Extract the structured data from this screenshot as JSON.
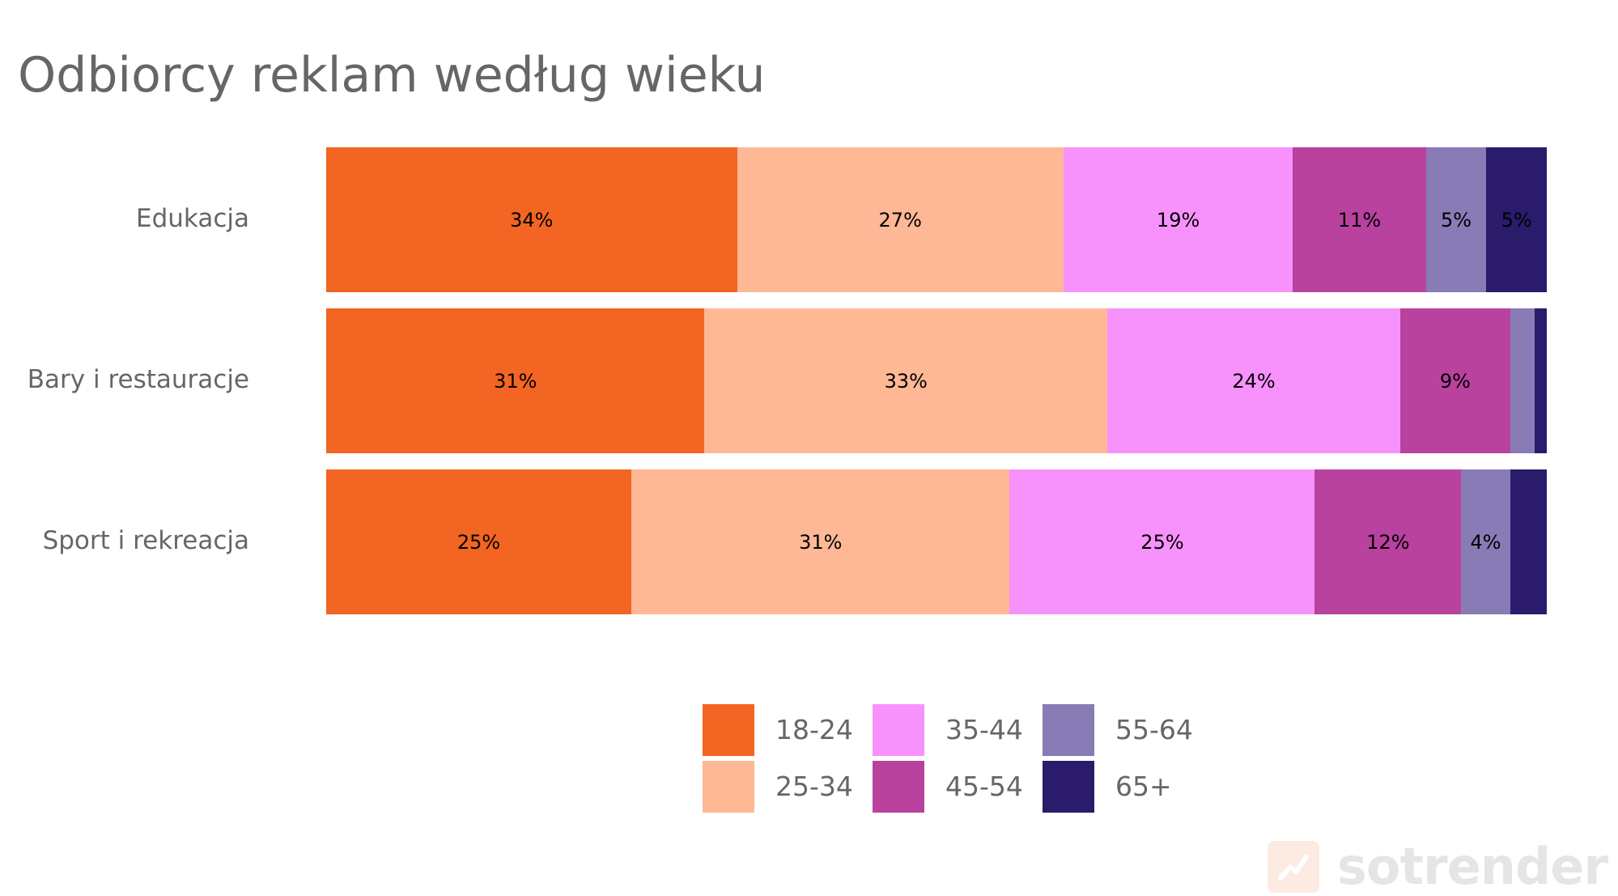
{
  "chart_data": {
    "type": "bar",
    "orientation": "horizontal",
    "stacked": true,
    "title": "Odbiorcy reklam według wieku",
    "categories": [
      "Edukacja",
      "Bary i restauracje",
      "Sport i rekreacja"
    ],
    "series": [
      {
        "name": "18-24",
        "color": "#F26522",
        "values": [
          34,
          31,
          25
        ],
        "labels": [
          "34%",
          "31%",
          "25%"
        ]
      },
      {
        "name": "25-34",
        "color": "#FFB896",
        "values": [
          27,
          33,
          31
        ],
        "labels": [
          "27%",
          "33%",
          "31%"
        ]
      },
      {
        "name": "35-44",
        "color": "#F792FC",
        "values": [
          19,
          24,
          25
        ],
        "labels": [
          "19%",
          "24%",
          "25%"
        ]
      },
      {
        "name": "45-54",
        "color": "#B9429F",
        "values": [
          11,
          9,
          12
        ],
        "labels": [
          "11%",
          "9%",
          "12%"
        ]
      },
      {
        "name": "55-64",
        "color": "#887BB6",
        "values": [
          5,
          2,
          4
        ],
        "labels": [
          "5%",
          "",
          "4%"
        ]
      },
      {
        "name": "65+",
        "color": "#2A1B6B",
        "values": [
          5,
          1,
          3
        ],
        "labels": [
          "5%",
          "",
          ""
        ]
      }
    ],
    "xlim": [
      0,
      100
    ],
    "legend": "bottom-center",
    "grid": false
  },
  "watermark": "sotrender"
}
